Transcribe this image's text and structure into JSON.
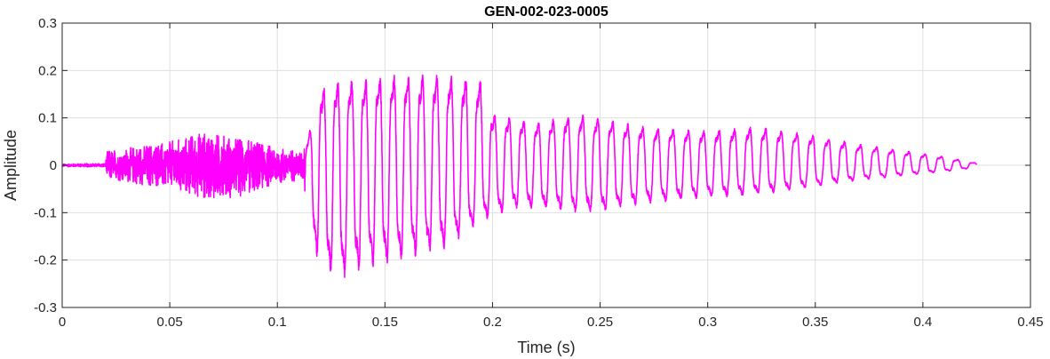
{
  "chart_data": {
    "type": "line",
    "title": "GEN-002-023-0005",
    "xlabel": "Time (s)",
    "ylabel": "Amplitude",
    "xlim": [
      0,
      0.45
    ],
    "ylim": [
      -0.3,
      0.3
    ],
    "xticks": [
      0,
      0.05,
      0.1,
      0.15,
      0.2,
      0.25,
      0.3,
      0.35,
      0.4,
      0.45
    ],
    "xtick_labels": [
      "0",
      "0.05",
      "0.1",
      "0.15",
      "0.2",
      "0.25",
      "0.3",
      "0.35",
      "0.4",
      "0.45"
    ],
    "yticks": [
      -0.3,
      -0.2,
      -0.1,
      0,
      0.1,
      0.2,
      0.3
    ],
    "ytick_labels": [
      "-0.3",
      "-0.2",
      "-0.1",
      "0",
      "0.1",
      "0.2",
      "0.3"
    ],
    "grid": true,
    "line_color": "#ff00ff",
    "signal_duration": 0.425,
    "envelope": {
      "t": [
        0,
        0.02,
        0.021,
        0.05,
        0.065,
        0.08,
        0.1,
        0.112,
        0.115,
        0.12,
        0.13,
        0.14,
        0.15,
        0.165,
        0.18,
        0.195,
        0.2,
        0.21,
        0.22,
        0.24,
        0.25,
        0.27,
        0.3,
        0.32,
        0.33,
        0.35,
        0.37,
        0.39,
        0.41,
        0.425
      ],
      "upper": [
        0.003,
        0.004,
        0.03,
        0.05,
        0.07,
        0.06,
        0.04,
        0.03,
        0.08,
        0.18,
        0.2,
        0.2,
        0.21,
        0.215,
        0.21,
        0.2,
        0.12,
        0.11,
        0.1,
        0.12,
        0.11,
        0.09,
        0.08,
        0.09,
        0.085,
        0.07,
        0.05,
        0.035,
        0.02,
        0.005
      ],
      "lower": [
        -0.003,
        -0.004,
        -0.03,
        -0.05,
        -0.07,
        -0.07,
        -0.04,
        -0.03,
        -0.15,
        -0.24,
        -0.265,
        -0.24,
        -0.23,
        -0.21,
        -0.19,
        -0.13,
        -0.12,
        -0.1,
        -0.1,
        -0.11,
        -0.11,
        -0.09,
        -0.075,
        -0.07,
        -0.065,
        -0.05,
        -0.035,
        -0.025,
        -0.015,
        -0.005
      ]
    }
  }
}
